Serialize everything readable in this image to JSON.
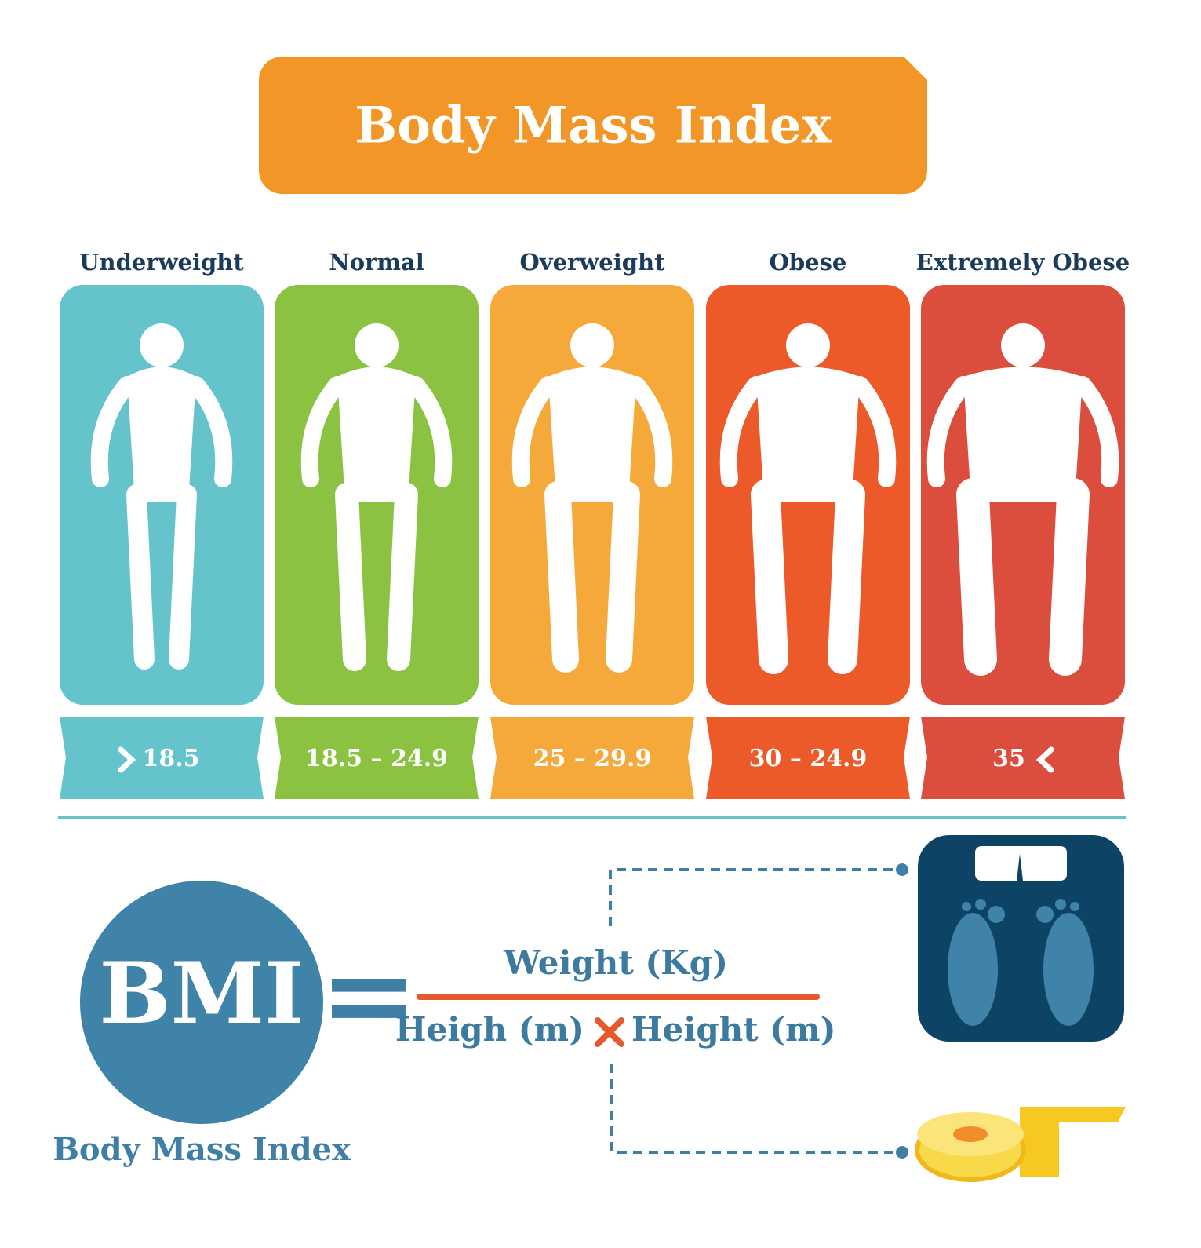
{
  "header": {
    "title": "Body Mass Index"
  },
  "categories": [
    {
      "label": "Underweight",
      "range": "18.5"
    },
    {
      "label": "Normal",
      "range": "18.5 – 24.9"
    },
    {
      "label": "Overweight",
      "range": "25 – 29.9"
    },
    {
      "label": "Obese",
      "range": "30 – 24.9"
    },
    {
      "label": "Extremely Obese",
      "range": "35"
    }
  ],
  "formula": {
    "symbol": "BMI",
    "caption": "Body Mass Index",
    "equals": "=",
    "numerator": "Weight (Kg)",
    "denominator_left": "Heigh (m)",
    "denominator_right": "Height (m)"
  }
}
